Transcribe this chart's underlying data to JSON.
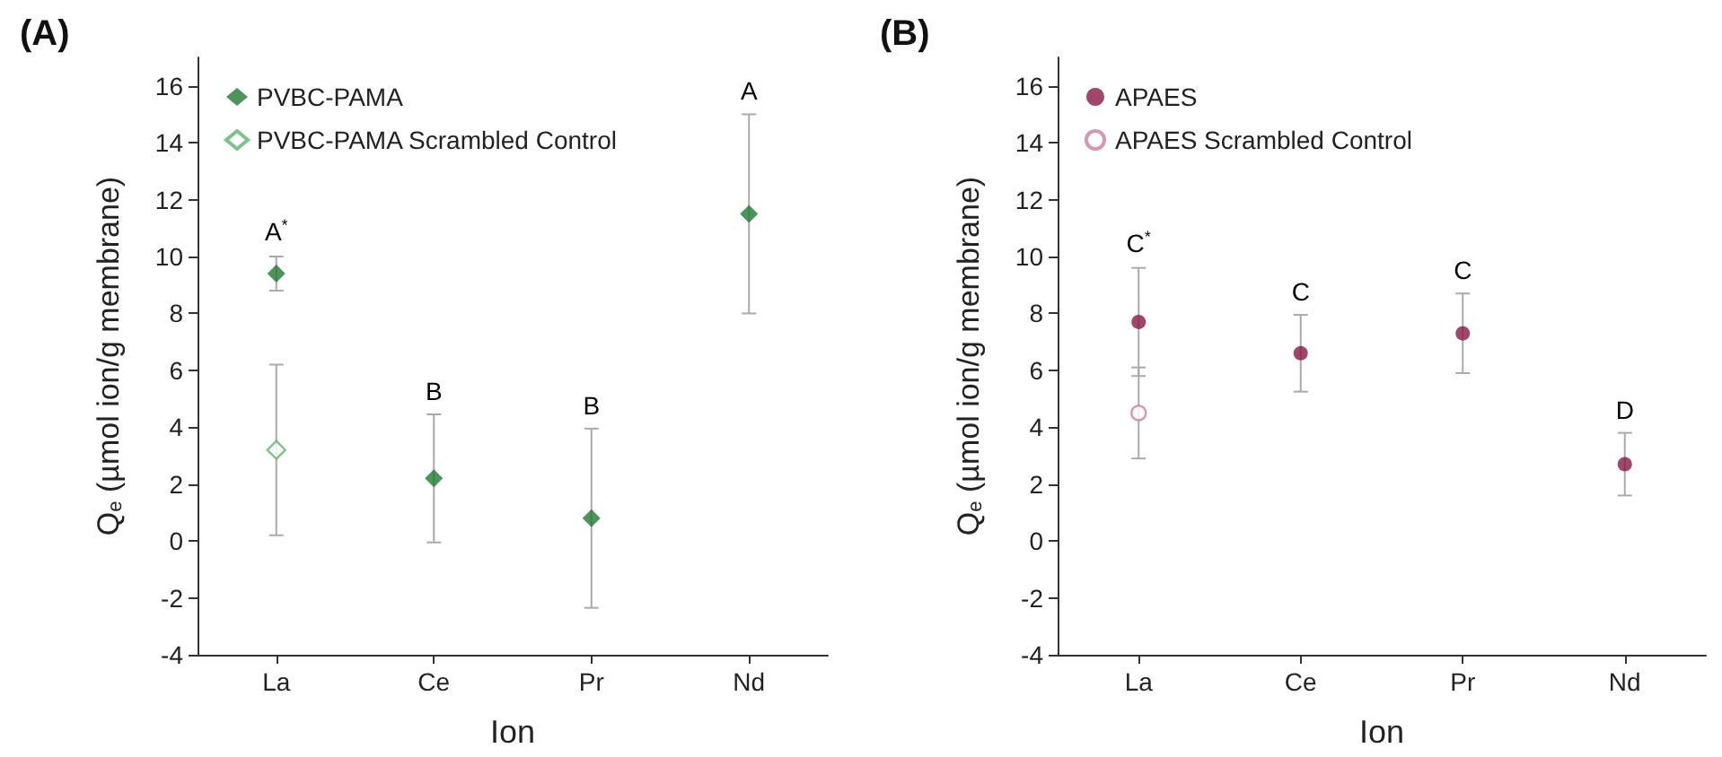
{
  "chart_data": [
    {
      "type": "scatter",
      "title": "(A)",
      "xlabel": "Ion",
      "ylabel": "Q$_{e}$ (µmol ion/g membrane)",
      "categories": [
        "La",
        "Ce",
        "Pr",
        "Nd"
      ],
      "series": [
        {
          "name": "PVBC-PAMA",
          "color": "#1e7b34",
          "values": [
            9.4,
            2.2,
            0.8,
            11.5
          ],
          "errors": [
            0.6,
            2.25,
            3.15,
            3.5
          ]
        },
        {
          "name": "PVBC-PAMA Scrambled Control",
          "color": "#5bb56e",
          "x": [
            "La"
          ],
          "values": [
            3.2
          ],
          "errors": [
            3.0
          ]
        }
      ],
      "annotations": [
        "A$^{*}$",
        "B",
        "B",
        "A"
      ],
      "ylim": [
        -4,
        17
      ],
      "yticks": [
        -4,
        -2,
        0,
        2,
        4,
        6,
        8,
        10,
        12,
        14,
        16
      ],
      "marker": "diamond",
      "legend": "top left",
      "grid": false
    },
    {
      "type": "scatter",
      "title": "(B)",
      "xlabel": "Ion",
      "ylabel": "Q$_{e}$ (µmol ion/g membrane)",
      "categories": [
        "La",
        "Ce",
        "Pr",
        "Nd"
      ],
      "series": [
        {
          "name": "APAES",
          "color": "#8a1846",
          "values": [
            7.7,
            6.6,
            7.3,
            2.7
          ],
          "errors": [
            1.9,
            1.35,
            1.4,
            1.1
          ]
        },
        {
          "name": "APAES Scrambled Control",
          "color": "#d27a9c",
          "x": [
            "La"
          ],
          "values": [
            4.5
          ],
          "errors": [
            1.6
          ]
        }
      ],
      "annotations": [
        "C$^{*}$",
        "C",
        "C",
        "D"
      ],
      "ylim": [
        -4,
        17
      ],
      "yticks": [
        -4,
        -2,
        0,
        2,
        4,
        6,
        8,
        10,
        12,
        14,
        16
      ],
      "marker": "circle",
      "legend": "top left",
      "grid": false
    }
  ]
}
